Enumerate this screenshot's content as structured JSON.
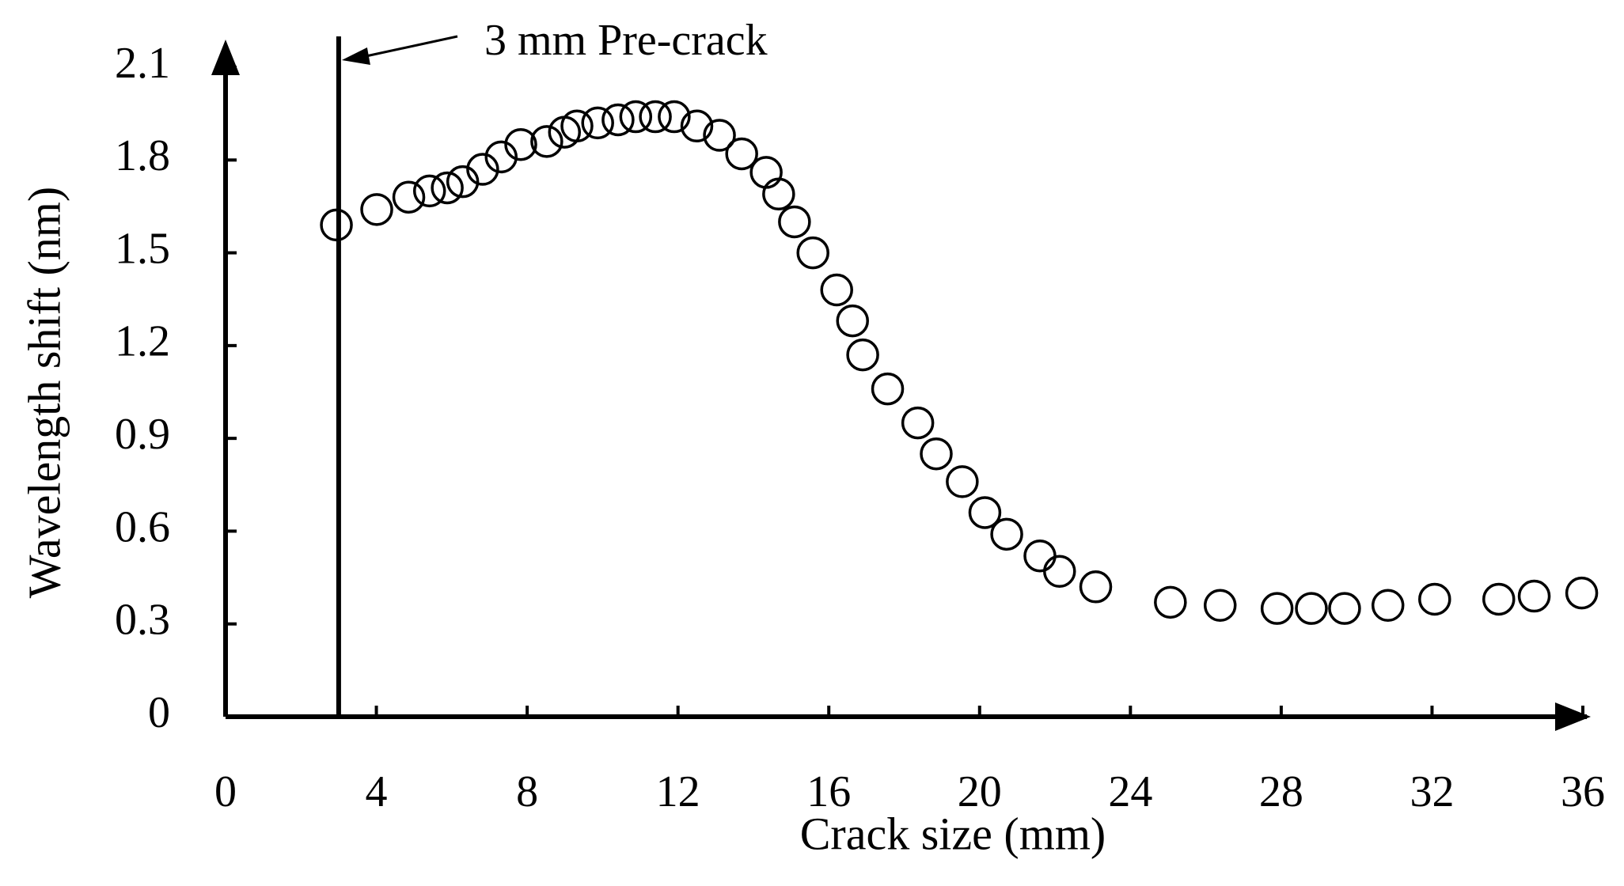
{
  "chart_data": {
    "type": "scatter",
    "x_label": "Crack size (mm)",
    "y_label": "Wavelength shift (nm)",
    "annotation": {
      "text": "3 mm Pre-crack",
      "x": 3
    },
    "color": "#000000",
    "marker": "open-circle",
    "xlim": [
      0,
      36
    ],
    "xticks": [
      0,
      4,
      8,
      12,
      16,
      20,
      24,
      28,
      32,
      36
    ],
    "ylim": [
      0,
      2.1
    ],
    "yticks": [
      0,
      0.3,
      0.6,
      0.9,
      1.2,
      1.5,
      1.8,
      2.1
    ],
    "x": [
      2.94,
      4.01,
      4.86,
      5.41,
      5.88,
      6.29,
      6.82,
      7.31,
      7.83,
      8.52,
      8.99,
      9.32,
      9.87,
      10.41,
      10.88,
      11.4,
      11.9,
      12.5,
      13.1,
      13.69,
      14.34,
      14.67,
      15.09,
      15.58,
      16.21,
      16.63,
      16.9,
      17.56,
      18.36,
      18.85,
      19.54,
      20.14,
      20.72,
      21.6,
      22.12,
      23.08,
      25.06,
      26.38,
      27.89,
      28.8,
      29.68,
      30.83,
      32.07,
      33.77,
      34.71,
      35.97
    ],
    "values": [
      1.59,
      1.64,
      1.68,
      1.7,
      1.71,
      1.73,
      1.77,
      1.81,
      1.85,
      1.86,
      1.89,
      1.91,
      1.92,
      1.93,
      1.94,
      1.94,
      1.94,
      1.91,
      1.88,
      1.82,
      1.76,
      1.69,
      1.6,
      1.5,
      1.38,
      1.28,
      1.17,
      1.06,
      0.95,
      0.85,
      0.76,
      0.66,
      0.59,
      0.52,
      0.47,
      0.42,
      0.37,
      0.36,
      0.35,
      0.35,
      0.35,
      0.36,
      0.38,
      0.38,
      0.39,
      0.4
    ]
  }
}
